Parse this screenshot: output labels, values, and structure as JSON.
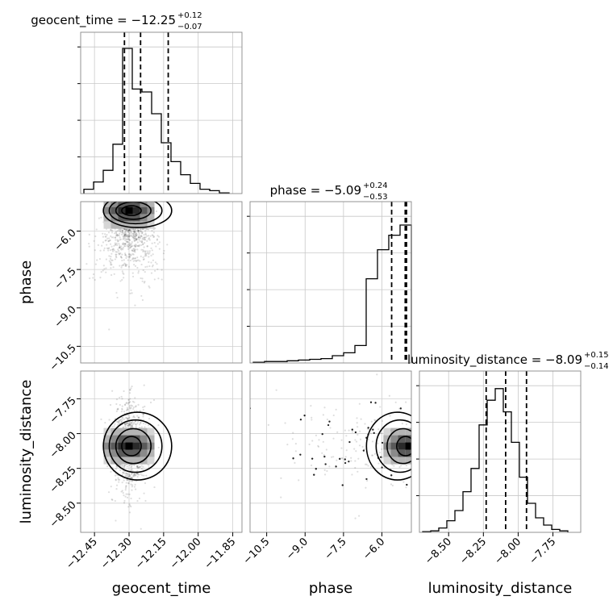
{
  "chart_data": {
    "type": "corner",
    "parameters": [
      "geocent_time",
      "phase",
      "luminosity_distance"
    ],
    "axis_labels": {
      "geocent_time": "geocent_time",
      "phase": "phase",
      "luminosity_distance": "luminosity_distance"
    },
    "titles": [
      {
        "param": "geocent_time",
        "text": "geocent_time = −12.25",
        "sup": "+0.12",
        "sub": "−0.07"
      },
      {
        "param": "phase",
        "text": "phase = −5.09",
        "sup": "+0.24",
        "sub": "−0.53"
      },
      {
        "param": "luminosity_distance",
        "text": "luminosity_distance = −8.09",
        "sup": "+0.15",
        "sub": "−0.14"
      }
    ],
    "ranges": {
      "geocent_time": [
        -12.51,
        -11.81
      ],
      "phase": [
        -11.15,
        -4.85
      ],
      "luminosity_distance": [
        -8.71,
        -7.55
      ]
    },
    "ticks": {
      "geocent_time": [
        -12.45,
        -12.3,
        -12.15,
        -12.0,
        -11.85
      ],
      "phase": [
        -10.5,
        -9.0,
        -7.5,
        -6.0
      ],
      "luminosity_distance": [
        -8.5,
        -8.25,
        -8.0,
        -7.75
      ]
    },
    "tick_labels": {
      "geocent_time": [
        "−12.45",
        "−12.30",
        "−12.15",
        "−12.00",
        "−11.85"
      ],
      "phase": [
        "−10.5",
        "−9.0",
        "−7.5",
        "−6.0"
      ],
      "luminosity_distance": [
        "−8.50",
        "−8.25",
        "−8.00",
        "−7.75"
      ]
    },
    "quantiles": {
      "geocent_time": [
        -12.32,
        -12.25,
        -12.13
      ],
      "phase": [
        -5.62,
        -5.09,
        -4.85
      ],
      "luminosity_distance": [
        -8.23,
        -8.09,
        -7.94
      ]
    },
    "histograms": {
      "geocent_time": [
        0.03,
        0.08,
        0.16,
        0.34,
        1.0,
        0.72,
        0.7,
        0.55,
        0.35,
        0.22,
        0.13,
        0.07,
        0.03,
        0.02,
        0.005
      ],
      "phase": [
        0.005,
        0.01,
        0.01,
        0.015,
        0.02,
        0.025,
        0.03,
        0.05,
        0.07,
        0.12,
        0.58,
        0.78,
        0.88,
        0.95
      ],
      "luminosity_distance": [
        0.005,
        0.01,
        0.03,
        0.08,
        0.15,
        0.28,
        0.44,
        0.74,
        0.91,
        0.99,
        0.83,
        0.62,
        0.38,
        0.2,
        0.1,
        0.05,
        0.02,
        0.01
      ]
    },
    "peaks_2d": {
      "phase_vs_geocent_time": {
        "x": -12.3,
        "y": -5.2
      },
      "luminosity_distance_vs_geocent_time": {
        "x": -12.3,
        "y": -8.09
      },
      "luminosity_distance_vs_phase": {
        "x": -4.95,
        "y": -8.09
      }
    },
    "grid": true
  }
}
